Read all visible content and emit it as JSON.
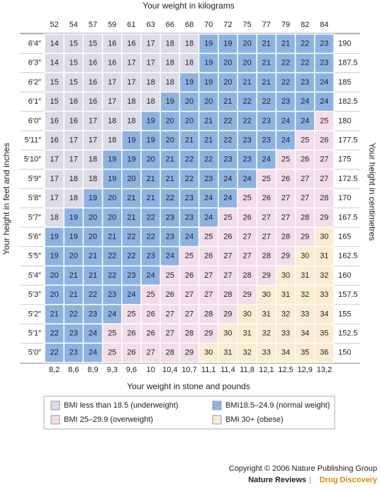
{
  "header": {
    "top_label": "Your weight in kilograms",
    "bottom_label": "Your weight in stone and pounds",
    "left_label": "Your height in feet and inches",
    "right_label": "Your height in centimetres"
  },
  "table": {
    "kg": [
      "52",
      "54",
      "57",
      "59",
      "61",
      "63",
      "66",
      "68",
      "70",
      "72",
      "75",
      "77",
      "79",
      "82",
      "84"
    ],
    "stone": [
      "8,2",
      "8,6",
      "8,9",
      "9,3",
      "9,6",
      "10",
      "10,4",
      "10,7",
      "11,1",
      "11,4",
      "11,8",
      "12,1",
      "12,5",
      "12,9",
      "13,2"
    ],
    "feet": [
      "6′4″",
      "6′3″",
      "6′2″",
      "6′1″",
      "6′0″",
      "5′11″",
      "5′10″",
      "5′9″",
      "5′8″",
      "5′7″",
      "5′6″",
      "5′5″",
      "5′4″",
      "5′3″",
      "5′2″",
      "5′1″",
      "5′0″"
    ],
    "cm": [
      "190",
      "187.5",
      "185",
      "182.5",
      "180",
      "177.5",
      "175",
      "172.5",
      "170",
      "167.5",
      "165",
      "162.5",
      "160",
      "157.5",
      "155",
      "152.5",
      "150"
    ],
    "rows": [
      [
        14,
        15,
        15,
        16,
        16,
        17,
        18,
        18,
        19,
        19,
        20,
        21,
        21,
        22,
        23
      ],
      [
        14,
        15,
        16,
        16,
        17,
        17,
        18,
        18,
        19,
        20,
        20,
        21,
        22,
        22,
        23
      ],
      [
        15,
        15,
        16,
        17,
        17,
        18,
        18,
        19,
        19,
        20,
        21,
        21,
        22,
        23,
        24
      ],
      [
        15,
        16,
        16,
        17,
        18,
        18,
        19,
        20,
        20,
        21,
        22,
        22,
        23,
        24,
        24
      ],
      [
        16,
        16,
        17,
        18,
        18,
        19,
        20,
        20,
        21,
        22,
        22,
        23,
        24,
        24,
        25
      ],
      [
        16,
        17,
        17,
        18,
        19,
        19,
        20,
        21,
        21,
        22,
        23,
        23,
        24,
        25,
        26
      ],
      [
        17,
        17,
        18,
        19,
        19,
        20,
        21,
        22,
        22,
        23,
        23,
        24,
        25,
        26,
        27
      ],
      [
        17,
        18,
        18,
        19,
        20,
        21,
        21,
        22,
        23,
        24,
        24,
        25,
        26,
        27,
        27
      ],
      [
        17,
        18,
        19,
        20,
        21,
        21,
        22,
        23,
        24,
        24,
        25,
        26,
        27,
        27,
        28
      ],
      [
        18,
        19,
        20,
        20,
        21,
        22,
        23,
        23,
        24,
        25,
        26,
        27,
        27,
        28,
        29
      ],
      [
        19,
        19,
        20,
        21,
        22,
        22,
        23,
        24,
        25,
        26,
        27,
        27,
        28,
        29,
        30
      ],
      [
        19,
        20,
        21,
        22,
        22,
        23,
        24,
        25,
        26,
        27,
        27,
        28,
        29,
        30,
        31
      ],
      [
        20,
        21,
        21,
        22,
        23,
        24,
        25,
        26,
        27,
        27,
        28,
        29,
        30,
        31,
        32
      ],
      [
        20,
        21,
        22,
        23,
        24,
        25,
        26,
        27,
        27,
        28,
        29,
        30,
        31,
        32,
        33
      ],
      [
        21,
        22,
        23,
        24,
        25,
        26,
        27,
        27,
        28,
        29,
        30,
        31,
        32,
        33,
        34
      ],
      [
        22,
        23,
        24,
        25,
        26,
        26,
        27,
        28,
        29,
        30,
        31,
        32,
        33,
        34,
        35
      ],
      [
        22,
        23,
        24,
        25,
        26,
        27,
        28,
        29,
        30,
        31,
        32,
        33,
        34,
        35,
        36
      ]
    ]
  },
  "legend": [
    {
      "label": "BMI less than 18.5 (underweight)",
      "color": "#dcdbe8"
    },
    {
      "label": "BMI18.5–24.9 (normal weight)",
      "color": "#8db3e2",
      "min": 18.5
    },
    {
      "label": "BMI 25–29.9 (overweight)",
      "color": "#f2dde8",
      "min": 25
    },
    {
      "label": "BMI 30+ (obese)",
      "color": "#fbedd2",
      "min": 30
    }
  ],
  "footer": {
    "copyright": "Copyright © 2006 Nature Publishing Group",
    "journal": "Nature Reviews",
    "section": "Drug Discovery"
  }
}
